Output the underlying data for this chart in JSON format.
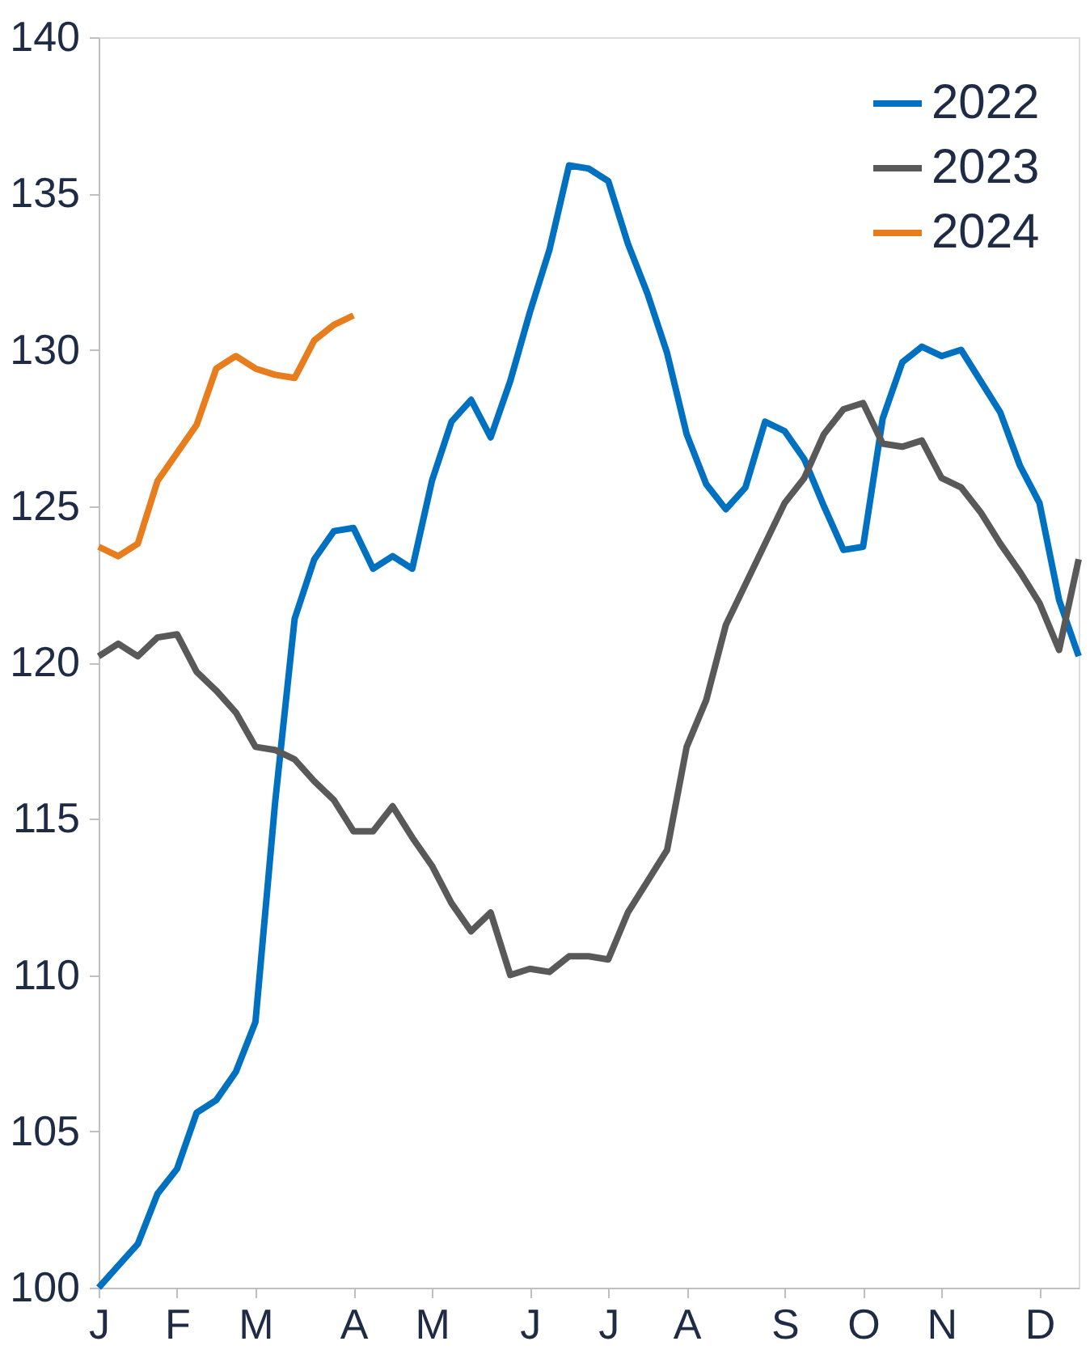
{
  "chart_data": {
    "type": "line",
    "categories": [
      "J",
      null,
      null,
      null,
      "F",
      null,
      null,
      null,
      "M",
      null,
      null,
      null,
      null,
      "A",
      null,
      null,
      null,
      "M",
      null,
      null,
      null,
      null,
      "J",
      null,
      null,
      null,
      "J",
      null,
      null,
      null,
      "A",
      null,
      null,
      null,
      null,
      "S",
      null,
      null,
      null,
      "O",
      null,
      null,
      null,
      "N",
      null,
      null,
      null,
      null,
      "D",
      null,
      null
    ],
    "series": [
      {
        "name": "2022",
        "color": "#0070c0",
        "values": [
          100.0,
          100.7,
          101.4,
          103.0,
          103.8,
          105.6,
          106.0,
          106.9,
          108.5,
          115.5,
          121.4,
          123.3,
          124.2,
          124.3,
          123.0,
          123.4,
          123.0,
          125.8,
          127.7,
          128.4,
          127.2,
          129.0,
          131.2,
          133.2,
          135.9,
          135.8,
          135.4,
          133.4,
          131.8,
          129.9,
          127.3,
          125.7,
          124.9,
          125.6,
          127.7,
          127.4,
          126.5,
          125.0,
          123.6,
          123.7,
          127.8,
          129.6,
          130.1,
          129.8,
          130.0,
          129.0,
          128.0,
          126.3,
          125.1,
          122.0,
          120.2
        ]
      },
      {
        "name": "2023",
        "color": "#595959",
        "values": [
          120.2,
          120.6,
          120.2,
          120.8,
          120.9,
          119.7,
          119.1,
          118.4,
          117.3,
          117.2,
          116.9,
          116.2,
          115.6,
          114.6,
          114.6,
          115.4,
          114.4,
          113.5,
          112.3,
          111.4,
          112.0,
          110.0,
          110.2,
          110.1,
          110.6,
          110.6,
          110.5,
          112.0,
          113.0,
          114.0,
          117.3,
          118.8,
          121.2,
          122.5,
          123.8,
          125.1,
          125.9,
          127.3,
          128.1,
          128.3,
          127.0,
          126.9,
          127.1,
          125.9,
          125.6,
          124.8,
          123.8,
          122.9,
          121.9,
          120.4,
          123.3
        ]
      },
      {
        "name": "2024",
        "color": "#e87d1e",
        "values": [
          123.7,
          123.4,
          123.8,
          125.8,
          126.7,
          127.6,
          129.4,
          129.8,
          129.4,
          129.2,
          129.1,
          130.3,
          130.8,
          131.1,
          null,
          null,
          null,
          null,
          null,
          null,
          null,
          null,
          null,
          null,
          null,
          null,
          null,
          null,
          null,
          null,
          null,
          null,
          null,
          null,
          null,
          null,
          null,
          null,
          null,
          null,
          null,
          null,
          null,
          null,
          null,
          null,
          null,
          null,
          null,
          null,
          null
        ]
      }
    ],
    "ylim": [
      100,
      140
    ],
    "yticks": [
      100,
      105,
      110,
      115,
      120,
      125,
      130,
      135,
      140
    ],
    "grid": false,
    "legend": "top right",
    "line_style": "solid",
    "marker": "none"
  }
}
